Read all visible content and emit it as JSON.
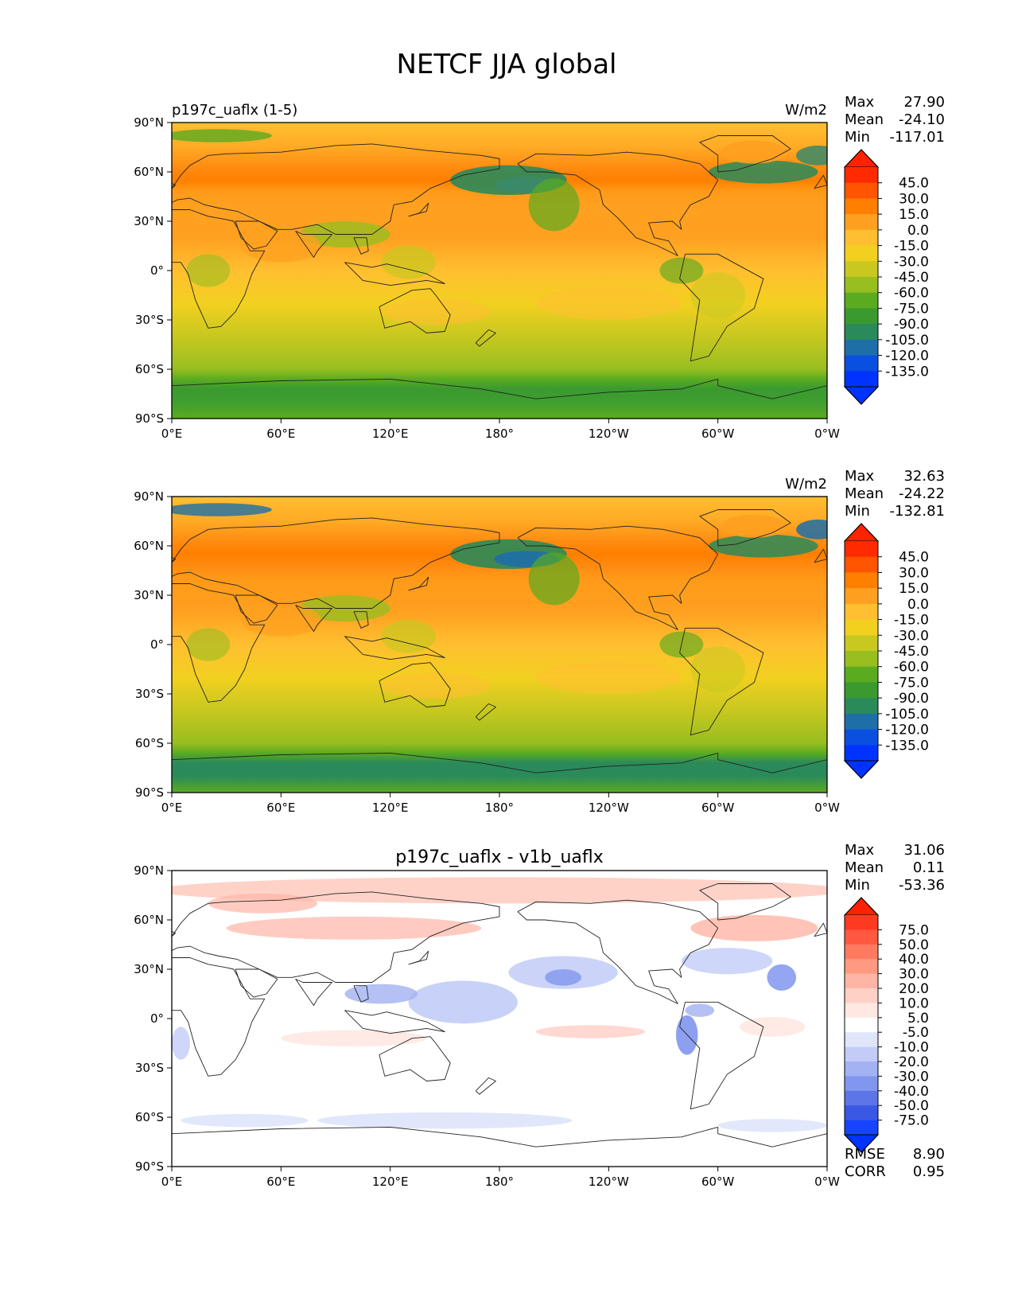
{
  "figure": {
    "title": "NETCF JJA global"
  },
  "chart_data": [
    {
      "type": "heatmap",
      "panel_title": "p197c_uaflx (1-5)",
      "units": "W/m2",
      "stats": {
        "max_label": "Max",
        "max": "27.90",
        "mean_label": "Mean",
        "mean": "-24.10",
        "min_label": "Min",
        "min": "-117.01"
      },
      "colorbar": {
        "labels": [
          "45.0",
          "30.0",
          "15.0",
          "0.0",
          "-15.0",
          "-30.0",
          "-45.0",
          "-60.0",
          "-75.0",
          "-90.0",
          "-105.0",
          "-120.0",
          "-135.0"
        ],
        "colors": [
          "#ff2a00",
          "#ff5500",
          "#ff7f00",
          "#ffa020",
          "#ffbf30",
          "#f2d020",
          "#c8c820",
          "#98be20",
          "#5aab20",
          "#3a9a30",
          "#2a8a5a",
          "#1e6fa8",
          "#0a50e0",
          "#0033ff"
        ],
        "top_color": "#ff2200",
        "bottom_color": "#0033ff"
      },
      "xticks": [
        "0°E",
        "60°E",
        "120°E",
        "180°",
        "120°W",
        "60°W",
        "0°W"
      ],
      "yticks": [
        "90°N",
        "60°N",
        "30°N",
        "0°",
        "30°S",
        "60°S",
        "90°S"
      ]
    },
    {
      "type": "heatmap",
      "panel_title": "",
      "units": "W/m2",
      "stats": {
        "max_label": "Max",
        "max": "32.63",
        "mean_label": "Mean",
        "mean": "-24.22",
        "min_label": "Min",
        "min": "-132.81"
      },
      "colorbar": {
        "labels": [
          "45.0",
          "30.0",
          "15.0",
          "0.0",
          "-15.0",
          "-30.0",
          "-45.0",
          "-60.0",
          "-75.0",
          "-90.0",
          "-105.0",
          "-120.0",
          "-135.0"
        ],
        "colors": [
          "#ff2a00",
          "#ff5500",
          "#ff7f00",
          "#ffa020",
          "#ffbf30",
          "#f2d020",
          "#c8c820",
          "#98be20",
          "#5aab20",
          "#3a9a30",
          "#2a8a5a",
          "#1e6fa8",
          "#0a50e0",
          "#0033ff"
        ],
        "top_color": "#ff2200",
        "bottom_color": "#0033ff"
      },
      "xticks": [
        "0°E",
        "60°E",
        "120°E",
        "180°",
        "120°W",
        "60°W",
        "0°W"
      ],
      "yticks": [
        "90°N",
        "60°N",
        "30°N",
        "0°",
        "30°S",
        "60°S",
        "90°S"
      ]
    },
    {
      "type": "heatmap",
      "panel_title": "p197c_uaflx - v1b_uaflx",
      "units": "",
      "stats": {
        "max_label": "Max",
        "max": "31.06",
        "mean_label": "Mean",
        "mean": "0.11",
        "min_label": "Min",
        "min": "-53.36"
      },
      "colorbar": {
        "labels": [
          "75.0",
          "50.0",
          "40.0",
          "30.0",
          "20.0",
          "10.0",
          "5.0",
          "-5.0",
          "-10.0",
          "-20.0",
          "-30.0",
          "-40.0",
          "-50.0",
          "-75.0"
        ],
        "colors": [
          "#ff3a20",
          "#ff5a40",
          "#ff7a60",
          "#ff9a80",
          "#ffb5a5",
          "#ffd0c5",
          "#ffe8e2",
          "#ffffff",
          "#dfe6fb",
          "#c2ccf7",
          "#a3b2f3",
          "#8196ee",
          "#5c76e8",
          "#3a58e4",
          "#1744ff"
        ],
        "top_color": "#ff2200",
        "bottom_color": "#0033ff"
      },
      "xticks": [
        "0°E",
        "60°E",
        "120°E",
        "180°",
        "120°W",
        "60°W",
        "0°W"
      ],
      "yticks": [
        "90°N",
        "60°N",
        "30°N",
        "0°",
        "30°S",
        "60°S",
        "90°S"
      ],
      "extra_stats": {
        "rmse_label": "RMSE",
        "rmse": "8.90",
        "corr_label": "CORR",
        "corr": "0.95"
      }
    }
  ]
}
